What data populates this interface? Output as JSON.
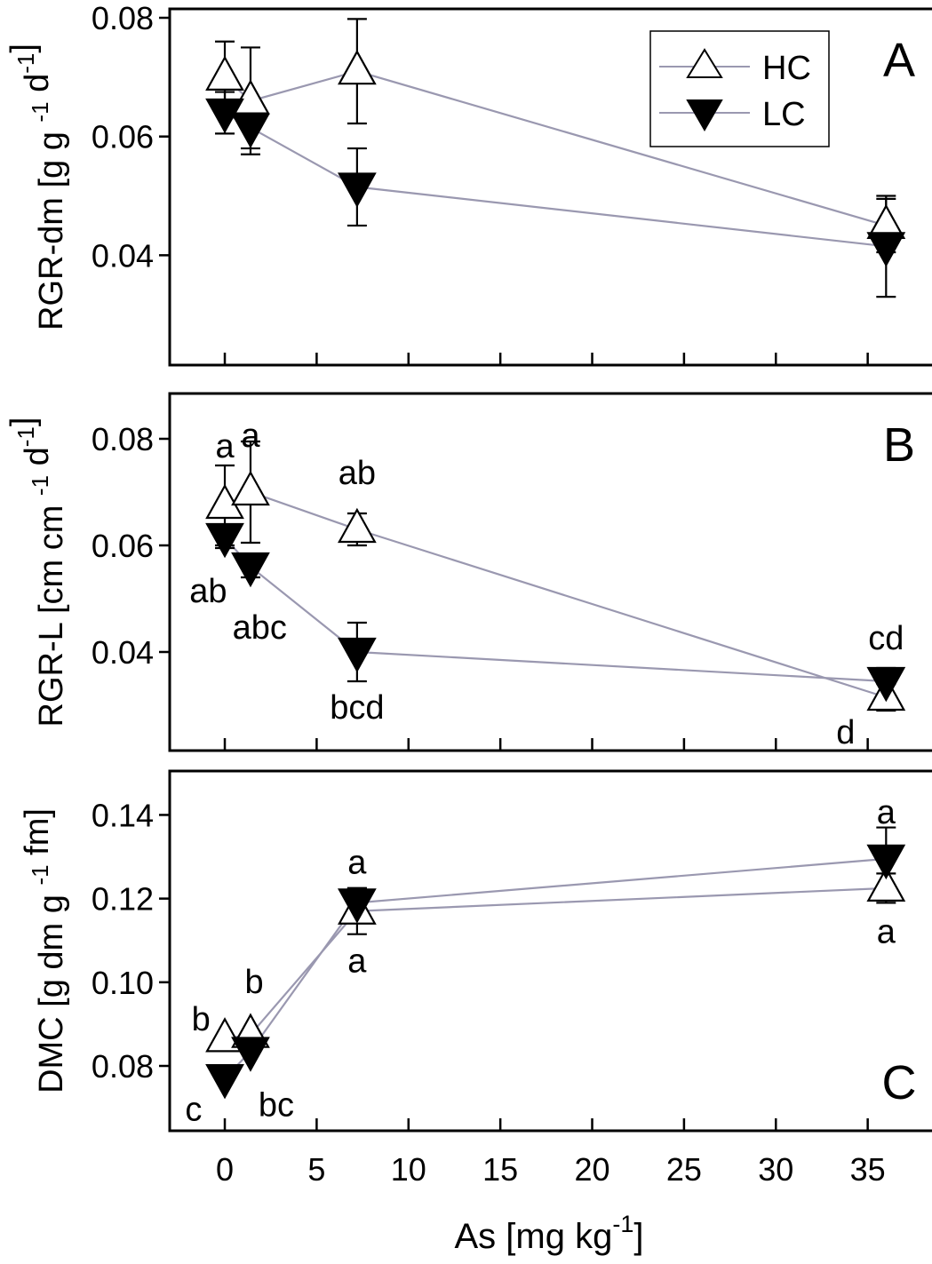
{
  "xaxis": {
    "label_main": "As [mg kg",
    "label_sup": "-1",
    "label_end": "]",
    "ticks": [
      0,
      5,
      10,
      15,
      20,
      25,
      30,
      35
    ],
    "xlim": [
      -3,
      38.5
    ]
  },
  "legend": {
    "hc_label": "HC",
    "lc_label": "LC",
    "placement": "top-right of panel A"
  },
  "colors": {
    "line": "#9a98b0",
    "hc_fill": "#ffffff",
    "lc_fill": "#000000",
    "axis": "#000000"
  },
  "chart_data": [
    {
      "type": "line",
      "panel": "A",
      "panel_letter": "A",
      "ylabel_parts": [
        {
          "t": "RGR-dm [g g "
        },
        {
          "t": "-1",
          "sup": true
        },
        {
          "t": " d"
        },
        {
          "t": "-1",
          "sup": true
        },
        {
          "t": "]"
        }
      ],
      "ylim": [
        0.0215,
        0.0815
      ],
      "yticks": [
        0.04,
        0.06,
        0.08
      ],
      "ytick_labels": [
        "0.04",
        "0.06",
        "0.08"
      ],
      "x": [
        0,
        1.4,
        7.2,
        36
      ],
      "series": [
        {
          "name": "HC",
          "marker": "triangle-up",
          "values": [
            0.07,
            0.066,
            0.071,
            0.045
          ],
          "err": [
            0.006,
            0.009,
            0.0088,
            0.0045
          ],
          "letters": []
        },
        {
          "name": "LC",
          "marker": "triangle-down",
          "values": [
            0.064,
            0.0615,
            0.0515,
            0.0415
          ],
          "err": [
            0.0035,
            0.0035,
            0.0065,
            0.0085
          ],
          "letters": []
        }
      ]
    },
    {
      "type": "line",
      "panel": "B",
      "panel_letter": "B",
      "ylabel_parts": [
        {
          "t": "RGR-L [cm cm "
        },
        {
          "t": "-1",
          "sup": true
        },
        {
          "t": " d"
        },
        {
          "t": "-1",
          "sup": true
        },
        {
          "t": "]"
        }
      ],
      "ylim": [
        0.0215,
        0.0885
      ],
      "yticks": [
        0.04,
        0.06,
        0.08
      ],
      "ytick_labels": [
        "0.04",
        "0.06",
        "0.08"
      ],
      "x": [
        0,
        1.4,
        7.2,
        36
      ],
      "series": [
        {
          "name": "HC",
          "marker": "triangle-up",
          "values": [
            0.0675,
            0.07,
            0.063,
            0.0315
          ],
          "err": [
            0.0075,
            0.0095,
            0.003,
            0.0025
          ],
          "letters": [
            {
              "text": "a",
              "x": 0,
              "y": 0.0785
            },
            {
              "text": "a",
              "x": 1.4,
              "y": 0.0805
            },
            {
              "text": "ab",
              "x": 7.2,
              "y": 0.0735
            },
            {
              "text": "d",
              "x": 33.8,
              "y": 0.0248
            }
          ]
        },
        {
          "name": "LC",
          "marker": "triangle-down",
          "values": [
            0.0615,
            0.056,
            0.04,
            0.0345
          ],
          "err": [
            0.002,
            0.002,
            0.0055,
            0.0025
          ],
          "letters": [
            {
              "text": "ab",
              "x": -0.9,
              "y": 0.0513
            },
            {
              "text": "abc",
              "x": 1.9,
              "y": 0.0445
            },
            {
              "text": "bcd",
              "x": 7.2,
              "y": 0.0295
            },
            {
              "text": "cd",
              "x": 36,
              "y": 0.0425
            }
          ]
        }
      ]
    },
    {
      "type": "line",
      "panel": "C",
      "panel_letter": "C",
      "ylabel_parts": [
        {
          "t": "DMC [g dm g "
        },
        {
          "t": "-1",
          "sup": true
        },
        {
          "t": " fm]"
        }
      ],
      "ylim": [
        0.0645,
        0.1505
      ],
      "yticks": [
        0.08,
        0.1,
        0.12,
        0.14
      ],
      "ytick_labels": [
        "0.08",
        "0.10",
        "0.12",
        "0.14"
      ],
      "x": [
        0,
        1.4,
        7.2,
        36
      ],
      "series": [
        {
          "name": "HC",
          "marker": "triangle-up",
          "values": [
            0.0865,
            0.0875,
            0.117,
            0.1225
          ],
          "err": [
            0.0,
            0.0,
            0.0055,
            0.0035
          ],
          "letters": [
            {
              "text": "b",
              "x": -1.3,
              "y": 0.091
            },
            {
              "text": "b",
              "x": 1.6,
              "y": 0.1
            },
            {
              "text": "a",
              "x": 7.2,
              "y": 0.105
            },
            {
              "text": "a",
              "x": 36,
              "y": 0.112
            }
          ]
        },
        {
          "name": "LC",
          "marker": "triangle-down",
          "values": [
            0.077,
            0.0835,
            0.119,
            0.1295
          ],
          "err": [
            0.0,
            0.0,
            0.0035,
            0.0075
          ],
          "letters": [
            {
              "text": "c",
              "x": -1.7,
              "y": 0.0695
            },
            {
              "text": "bc",
              "x": 2.8,
              "y": 0.0705
            },
            {
              "text": "a",
              "x": 7.2,
              "y": 0.1285
            },
            {
              "text": "a",
              "x": 36,
              "y": 0.1405
            }
          ]
        }
      ]
    }
  ]
}
